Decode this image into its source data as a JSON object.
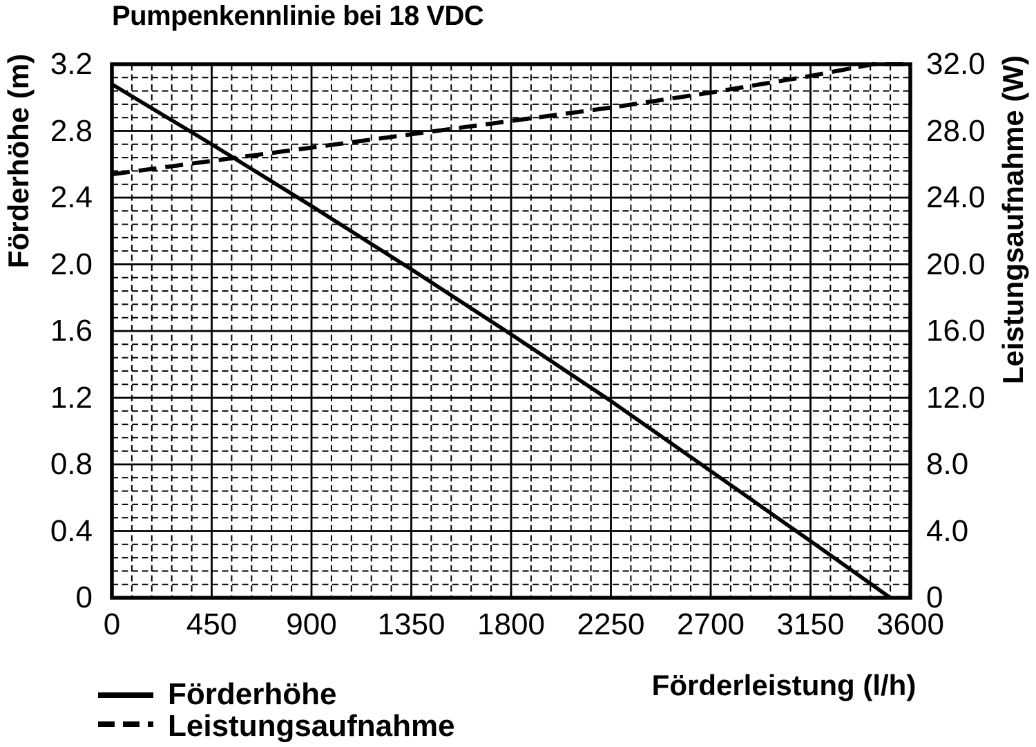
{
  "chart_data": {
    "type": "line",
    "title": "Pumpenkennlinie bei 18 VDC",
    "background": "#ffffff",
    "line_color": "#000000",
    "text_color": "#000000",
    "grid": {
      "shown": true,
      "major_style": "solid",
      "minor_style": "dashed"
    },
    "legend_position": "bottom-left",
    "x_axis": {
      "title": "Förderleistung (l/h)",
      "min": 0,
      "max": 3600,
      "major_step": 450,
      "minor_step": 90,
      "tick_labels": [
        "0",
        "450",
        "900",
        "1350",
        "1800",
        "2250",
        "2700",
        "3150",
        "3600"
      ]
    },
    "left_axis": {
      "title": "Förderhöhe (m)",
      "min": 0,
      "max": 3.2,
      "major_step": 0.4,
      "minor_step": 0.08,
      "tick_labels": [
        "3.2",
        "2.8",
        "2.4",
        "2.0",
        "1.6",
        "1.2",
        "0.8",
        "0.4",
        "0"
      ]
    },
    "right_axis": {
      "title": "Leistungsaufnahme (W)",
      "min": 0,
      "max": 32.0,
      "major_step": 4.0,
      "minor_step": 0.8,
      "tick_labels": [
        "32.0",
        "28.0",
        "24.0",
        "20.0",
        "16.0",
        "12.0",
        "8.0",
        "4.0",
        "0"
      ]
    },
    "series": [
      {
        "name": "Förderhöhe",
        "axis": "left",
        "line_style": "solid",
        "points": [
          [
            0,
            3.08
          ],
          [
            450,
            2.72
          ],
          [
            900,
            2.35
          ],
          [
            1350,
            1.97
          ],
          [
            1800,
            1.58
          ],
          [
            2250,
            1.18
          ],
          [
            2700,
            0.76
          ],
          [
            3150,
            0.34
          ],
          [
            3510,
            0
          ]
        ]
      },
      {
        "name": "Leistungsaufnahme",
        "axis": "right",
        "line_style": "dashed",
        "points": [
          [
            0,
            25.4
          ],
          [
            450,
            26.2
          ],
          [
            900,
            27.0
          ],
          [
            1350,
            27.8
          ],
          [
            1800,
            28.6
          ],
          [
            2250,
            29.4
          ],
          [
            2700,
            30.3
          ],
          [
            3150,
            31.3
          ],
          [
            3430,
            32.0
          ],
          [
            3600,
            32.0
          ]
        ]
      }
    ],
    "legend": [
      {
        "label": "Förderhöhe",
        "line_style": "solid"
      },
      {
        "label": "Leistungsaufnahme",
        "line_style": "dashed"
      }
    ]
  }
}
